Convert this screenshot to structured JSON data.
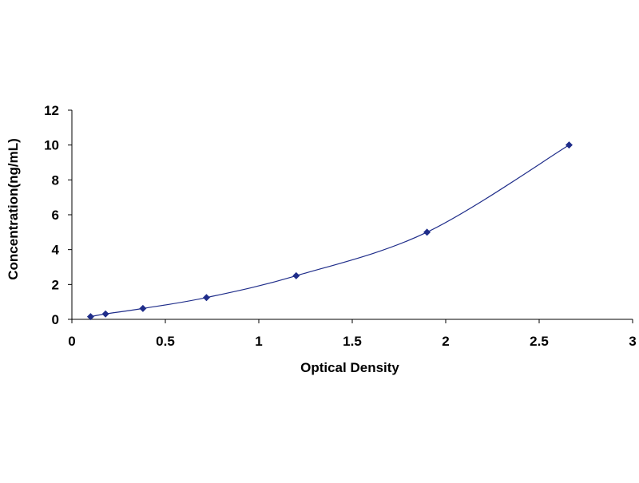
{
  "chart_data": {
    "type": "scatter",
    "title": "",
    "xlabel": "Optical Density",
    "ylabel": "Concentration(ng/mL)",
    "xlim": [
      0,
      3
    ],
    "ylim": [
      0,
      12
    ],
    "x_ticks": [
      0,
      0.5,
      1,
      1.5,
      2,
      2.5,
      3
    ],
    "x_tick_labels": [
      "0",
      "0.5",
      "1",
      "1.5",
      "2",
      "2.5",
      "3"
    ],
    "y_ticks": [
      0,
      2,
      4,
      6,
      8,
      10,
      12
    ],
    "y_tick_labels": [
      "0",
      "2",
      "4",
      "6",
      "8",
      "10",
      "12"
    ],
    "grid": false,
    "legend": "none",
    "trendline": "smooth curve",
    "marker": "diamond",
    "series": [
      {
        "x": [
          0.1,
          0.18,
          0.38,
          0.72,
          1.2,
          1.9,
          2.66
        ],
        "y": [
          0.156,
          0.312,
          0.625,
          1.25,
          2.5,
          5,
          10
        ]
      }
    ],
    "colors": {
      "series": "#1f2d8a",
      "axis": "#000000"
    }
  }
}
